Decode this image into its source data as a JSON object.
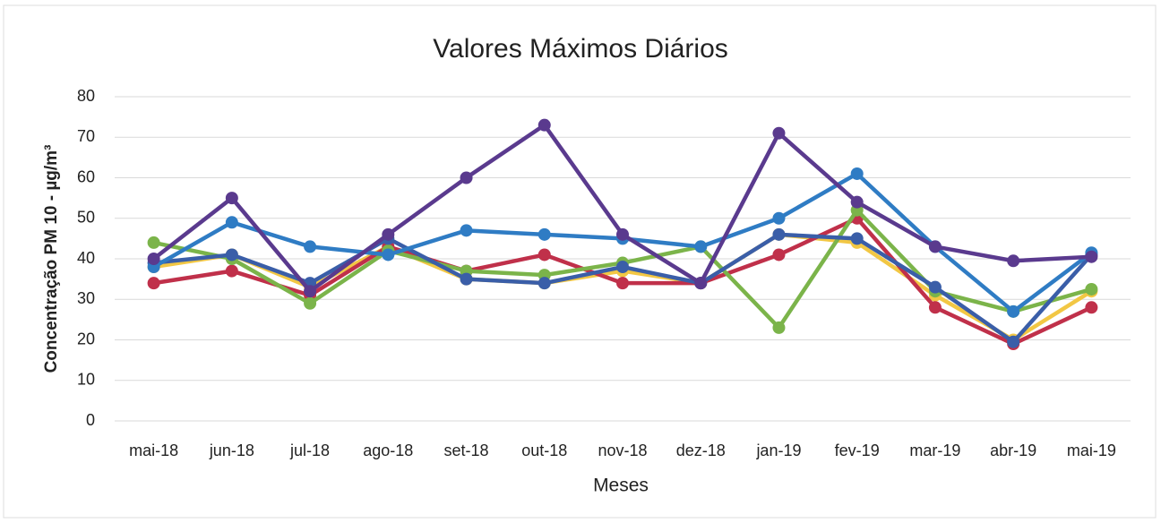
{
  "chart_data": {
    "type": "line",
    "title": "Valores Máximos Diários",
    "y_label": "Concentração PM 10 - µg/m³",
    "x_label": "Meses",
    "categories": [
      "mai-18",
      "jun-18",
      "jul-18",
      "ago-18",
      "set-18",
      "out-18",
      "nov-18",
      "dez-18",
      "jan-19",
      "fev-19",
      "mar-19",
      "abr-19",
      "mai-19"
    ],
    "series": [
      {
        "color": "#f2c744",
        "values": [
          38,
          41,
          33,
          43,
          35,
          34,
          37,
          34,
          46,
          44,
          31,
          20,
          32
        ]
      },
      {
        "color": "#c0304a",
        "values": [
          34,
          37,
          31,
          43,
          37,
          41,
          34,
          34,
          41,
          50,
          28,
          19,
          28
        ]
      },
      {
        "color": "#7bb44a",
        "values": [
          44,
          40,
          29,
          42,
          37,
          36,
          39,
          43,
          23,
          52,
          32,
          27,
          32.5
        ]
      },
      {
        "color": "#3a5ea8",
        "values": [
          39,
          41,
          34,
          45,
          35,
          34,
          38,
          34,
          46,
          45,
          33,
          19.5,
          41
        ]
      },
      {
        "color": "#2f7cc4",
        "values": [
          38,
          49,
          43,
          41,
          47,
          46,
          45,
          43,
          50,
          61,
          43,
          27,
          41.5
        ]
      },
      {
        "color": "#5a3a8e",
        "values": [
          40,
          55,
          32,
          46,
          60,
          73,
          46,
          34,
          71,
          54,
          43,
          39.5,
          40.5
        ]
      }
    ],
    "ylim": [
      0,
      80
    ],
    "yticks": [
      0,
      10,
      20,
      30,
      40,
      50,
      60,
      70,
      80
    ],
    "grid": true
  }
}
